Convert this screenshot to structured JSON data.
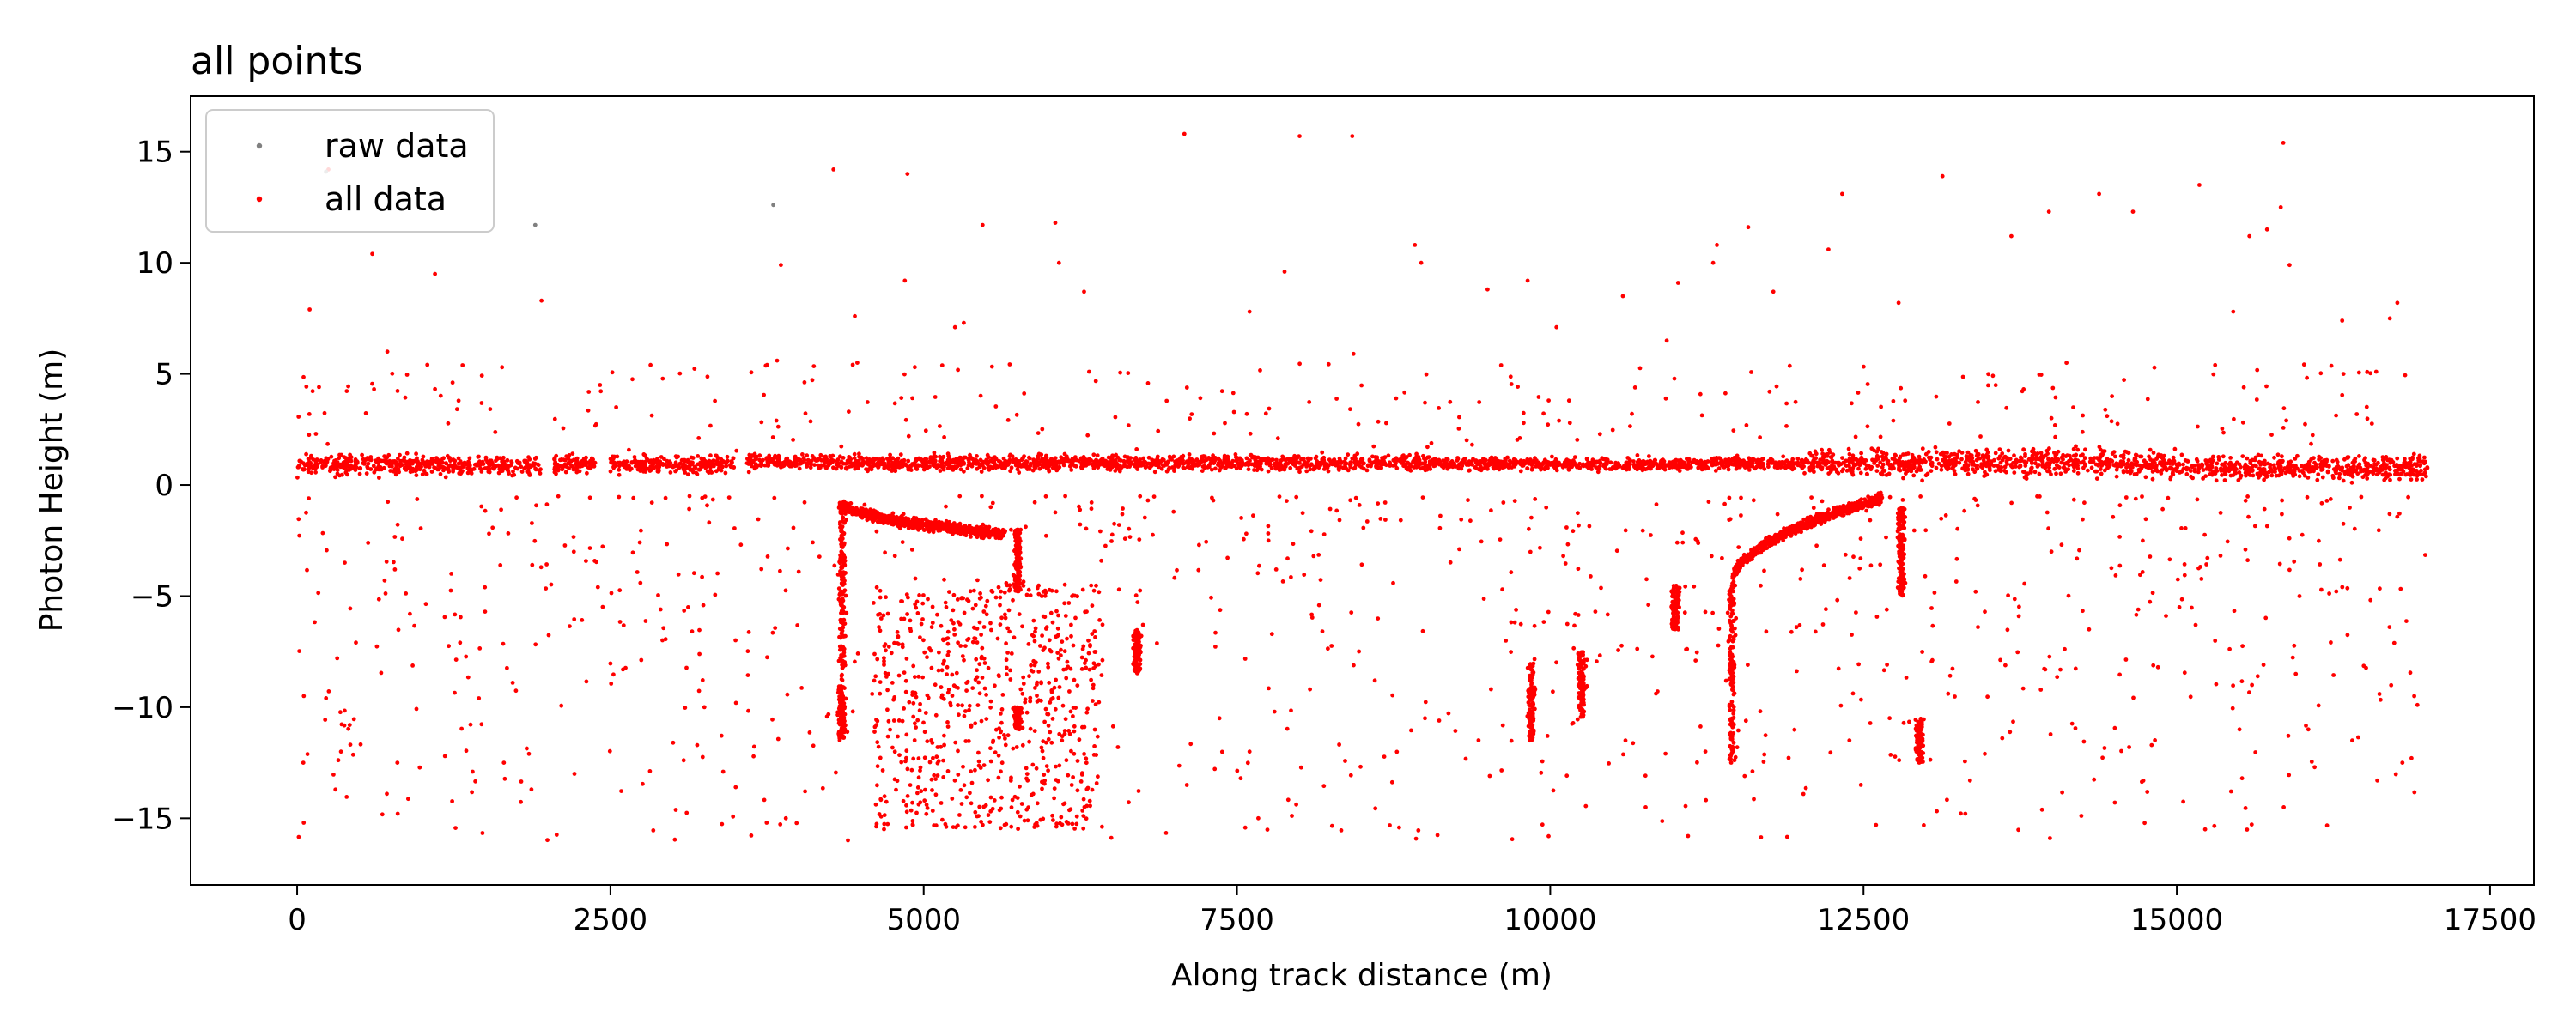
{
  "chart_data": {
    "type": "scatter",
    "title": "all points",
    "xlabel": "Along track distance (m)",
    "ylabel": "Photon Height (m)",
    "xlim": [
      -850,
      17850
    ],
    "ylim": [
      -18,
      17.5
    ],
    "xticks": [
      0,
      2500,
      5000,
      7500,
      10000,
      12500,
      15000,
      17500
    ],
    "xtick_labels": [
      "0",
      "2500",
      "5000",
      "7500",
      "10000",
      "12500",
      "15000",
      "17500"
    ],
    "yticks": [
      -15,
      -10,
      -5,
      0,
      5,
      10,
      15
    ],
    "ytick_labels": [
      "−15",
      "−10",
      "−5",
      "0",
      "5",
      "10",
      "15"
    ],
    "grid": false,
    "legend_position": "top-left",
    "series": [
      {
        "name": "raw data",
        "color": "#808080",
        "marker": "point",
        "points": [
          [
            230,
            14.1
          ],
          [
            1900,
            11.7
          ],
          [
            3800,
            12.6
          ]
        ]
      },
      {
        "name": "all data",
        "color": "#ff0000",
        "marker": "point",
        "components": {
          "surface_band": {
            "x_range": [
              0,
              17000
            ],
            "gaps": [
              [
                1950,
                2050
              ],
              [
                2380,
                2500
              ],
              [
                3500,
                3580
              ]
            ],
            "segments": [
              {
                "x": [
                  0,
                  3500
                ],
                "center": 0.9,
                "spread": 0.45
              },
              {
                "x": [
                  3500,
                  9000
                ],
                "center": 1.0,
                "spread": 0.35
              },
              {
                "x": [
                  9000,
                  12000
                ],
                "center": 0.95,
                "spread": 0.3
              },
              {
                "x": [
                  12000,
                  15000
                ],
                "center": 1.0,
                "spread": 0.6
              },
              {
                "x": [
                  15000,
                  17000
                ],
                "center": 0.8,
                "spread": 0.55
              }
            ]
          },
          "left_depression": {
            "x": [
              4350,
              5650
            ],
            "y_start": -0.8,
            "y_end": -2.2,
            "wall_x": 5750,
            "wall_y": [
              -2.0,
              -4.8
            ]
          },
          "right_depression": {
            "x": [
              11450,
              12650
            ],
            "y_start": -4.5,
            "y_end": -0.6,
            "wall_x": 12800,
            "wall_y": [
              -1.0,
              -5.0
            ]
          },
          "columns": [
            {
              "x": 9850,
              "y": [
                -8.0,
                -11.5
              ]
            },
            {
              "x": 10250,
              "y": [
                -7.5,
                -10.5
              ]
            },
            {
              "x": 11000,
              "y": [
                -4.5,
                -6.5
              ]
            },
            {
              "x": 12950,
              "y": [
                -10.5,
                -12.5
              ]
            },
            {
              "x": 6700,
              "y": [
                -6.5,
                -8.5
              ]
            },
            {
              "x": 4350,
              "y": [
                -9.0,
                -11.5
              ]
            },
            {
              "x": 5750,
              "y": [
                -10.0,
                -11.0
              ]
            }
          ],
          "deep_cluster": {
            "x": [
              4600,
              6400
            ],
            "y": [
              -4.5,
              -15.5
            ]
          },
          "scattered_points": [
            [
              100,
              7.9
            ],
            [
              150,
              2.3
            ],
            [
              250,
              14.2
            ],
            [
              320,
              -7.8
            ],
            [
              380,
              -3.5
            ],
            [
              420,
              -10.8
            ],
            [
              350,
              -12.0
            ],
            [
              600,
              10.4
            ],
            [
              720,
              6.0
            ],
            [
              780,
              -3.8
            ],
            [
              800,
              -12.5
            ],
            [
              900,
              -5.8
            ],
            [
              1100,
              9.5
            ],
            [
              1180,
              -12.2
            ],
            [
              1300,
              -7.1
            ],
            [
              1400,
              -12.9
            ],
            [
              1450,
              -9.6
            ],
            [
              1500,
              -5.7
            ],
            [
              1650,
              -12.5
            ],
            [
              1720,
              -8.9
            ],
            [
              1850,
              -12.1
            ],
            [
              1870,
              -13.7
            ],
            [
              1950,
              8.3
            ],
            [
              2400,
              -4.6
            ],
            [
              2600,
              -8.3
            ],
            [
              2820,
              5.4
            ],
            [
              2900,
              -5.6
            ],
            [
              3000,
              -11.6
            ],
            [
              3120,
              -5.5
            ],
            [
              3250,
              -10.0
            ],
            [
              3400,
              -12.9
            ],
            [
              3500,
              -13.6
            ],
            [
              3750,
              5.4
            ],
            [
              3830,
              5.6
            ],
            [
              3860,
              9.9
            ],
            [
              3900,
              -15.0
            ],
            [
              4280,
              14.2
            ],
            [
              4450,
              7.6
            ],
            [
              4470,
              5.5
            ],
            [
              4870,
              14.0
            ],
            [
              4850,
              9.2
            ],
            [
              5250,
              7.1
            ],
            [
              5320,
              7.3
            ],
            [
              5470,
              11.7
            ],
            [
              6050,
              11.8
            ],
            [
              6080,
              10.0
            ],
            [
              6280,
              8.7
            ],
            [
              6320,
              5.1
            ],
            [
              7080,
              15.8
            ],
            [
              7600,
              7.8
            ],
            [
              7880,
              9.6
            ],
            [
              8000,
              15.7
            ],
            [
              8420,
              15.7
            ],
            [
              8430,
              5.9
            ],
            [
              8920,
              10.8
            ],
            [
              8970,
              10.0
            ],
            [
              9000,
              3.7
            ],
            [
              9500,
              8.8
            ],
            [
              9820,
              9.2
            ],
            [
              10050,
              7.1
            ],
            [
              10150,
              3.8
            ],
            [
              10580,
              8.5
            ],
            [
              10930,
              6.5
            ],
            [
              11020,
              9.1
            ],
            [
              11300,
              10.0
            ],
            [
              11330,
              10.8
            ],
            [
              11580,
              11.6
            ],
            [
              11780,
              8.7
            ],
            [
              11750,
              4.2
            ],
            [
              12220,
              10.6
            ],
            [
              12330,
              13.1
            ],
            [
              12780,
              8.2
            ],
            [
              13130,
              13.9
            ],
            [
              13680,
              11.2
            ],
            [
              13980,
              12.3
            ],
            [
              14380,
              13.1
            ],
            [
              14650,
              12.3
            ],
            [
              15180,
              13.5
            ],
            [
              15450,
              7.8
            ],
            [
              15580,
              11.2
            ],
            [
              15720,
              11.5
            ],
            [
              15830,
              12.5
            ],
            [
              15850,
              15.4
            ],
            [
              15900,
              9.9
            ],
            [
              16320,
              7.4
            ],
            [
              16330,
              5.0
            ],
            [
              16700,
              7.5
            ],
            [
              16760,
              8.2
            ],
            [
              16920,
              -9.9
            ],
            [
              14000,
              -3.0
            ],
            [
              14300,
              -6.5
            ],
            [
              14620,
              -11.8
            ],
            [
              14850,
              -8.2
            ],
            [
              15150,
              -6.3
            ],
            [
              15500,
              -11.0
            ],
            [
              15600,
              -9.0
            ],
            [
              15950,
              -8.5
            ],
            [
              16050,
              -11.0
            ],
            [
              16100,
              -12.7
            ],
            [
              16400,
              -11.5
            ],
            [
              16600,
              -13.3
            ],
            [
              16800,
              -12.5
            ],
            [
              13350,
              -13.3
            ],
            [
              13950,
              -8.3
            ],
            [
              9000,
              -10.5
            ],
            [
              8600,
              -8.8
            ],
            [
              7800,
              -10.2
            ],
            [
              7600,
              -12.0
            ],
            [
              7100,
              -13.5
            ],
            [
              6550,
              -11.8
            ],
            [
              10600,
              -11.5
            ],
            [
              12600,
              -15.3
            ],
            [
              11100,
              -15.8
            ]
          ]
        }
      }
    ]
  }
}
